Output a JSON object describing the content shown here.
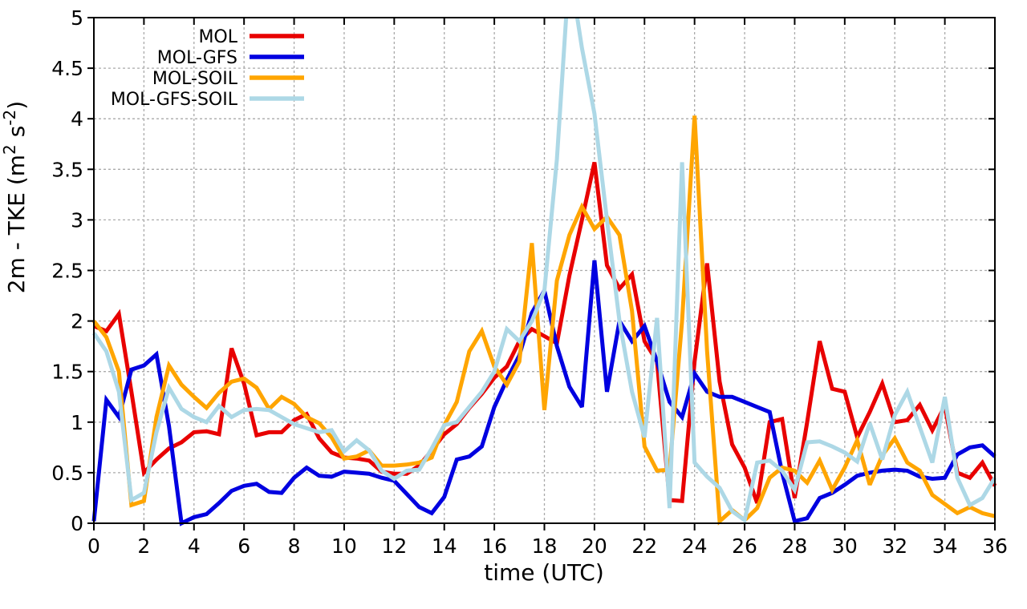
{
  "chart_data": {
    "type": "line",
    "title": "",
    "xlabel": "time (UTC)",
    "ylabel": "2m - TKE (m2 s-2)",
    "ylabel_parts": [
      {
        "text": "2m - TKE (m"
      },
      {
        "text": "2",
        "sup": true
      },
      {
        "text": " s"
      },
      {
        "text": "-2",
        "sup": true
      },
      {
        "text": ")"
      }
    ],
    "xlim": [
      0,
      36
    ],
    "ylim": [
      0,
      5
    ],
    "xticks": [
      0,
      2,
      4,
      6,
      8,
      10,
      12,
      14,
      16,
      18,
      20,
      22,
      24,
      26,
      28,
      30,
      32,
      34,
      36
    ],
    "yticks": [
      0,
      0.5,
      1,
      1.5,
      2,
      2.5,
      3,
      3.5,
      4,
      4.5,
      5
    ],
    "grid": true,
    "grid_color": "#aaaaaa",
    "axis_color": "#000000",
    "background": "#ffffff",
    "legend_position": "top-left",
    "x_start": 0,
    "x_step": 0.5,
    "series": [
      {
        "name": "MOL",
        "color": "#e80000",
        "values": [
          1.95,
          1.9,
          2.07,
          1.3,
          0.5,
          0.63,
          0.74,
          0.8,
          0.9,
          0.91,
          0.88,
          1.73,
          1.38,
          0.87,
          0.9,
          0.9,
          1.02,
          1.08,
          0.84,
          0.7,
          0.65,
          0.64,
          0.62,
          0.51,
          0.49,
          0.49,
          0.57,
          0.72,
          0.88,
          0.98,
          1.14,
          1.28,
          1.44,
          1.55,
          1.8,
          1.92,
          1.85,
          1.78,
          2.45,
          3.0,
          3.57,
          2.55,
          2.32,
          2.46,
          1.8,
          1.6,
          0.23,
          0.22,
          1.6,
          2.57,
          1.4,
          0.78,
          0.55,
          0.2,
          1.0,
          1.03,
          0.25,
          1.0,
          1.8,
          1.33,
          1.3,
          0.85,
          1.1,
          1.38,
          1.0,
          1.02,
          1.17,
          0.92,
          1.16,
          0.5,
          0.45,
          0.6,
          0.37
        ]
      },
      {
        "name": "MOL-GFS",
        "color": "#0000e0",
        "values": [
          0.02,
          1.22,
          1.05,
          1.52,
          1.56,
          1.67,
          0.96,
          0.0,
          0.06,
          0.09,
          0.2,
          0.32,
          0.37,
          0.39,
          0.31,
          0.3,
          0.45,
          0.55,
          0.47,
          0.46,
          0.51,
          0.5,
          0.49,
          0.45,
          0.42,
          0.29,
          0.16,
          0.1,
          0.26,
          0.63,
          0.66,
          0.76,
          1.15,
          1.42,
          1.66,
          2.08,
          2.3,
          1.75,
          1.35,
          1.15,
          2.6,
          1.3,
          2.0,
          1.8,
          1.95,
          1.6,
          1.2,
          1.05,
          1.48,
          1.3,
          1.25,
          1.25,
          1.2,
          1.15,
          1.1,
          0.5,
          0.02,
          0.05,
          0.25,
          0.3,
          0.38,
          0.47,
          0.5,
          0.52,
          0.53,
          0.52,
          0.46,
          0.44,
          0.45,
          0.68,
          0.75,
          0.77,
          0.66
        ]
      },
      {
        "name": "MOL-SOIL",
        "color": "#ffa500",
        "values": [
          2.0,
          1.84,
          1.5,
          0.18,
          0.22,
          1.05,
          1.56,
          1.37,
          1.25,
          1.14,
          1.29,
          1.4,
          1.43,
          1.34,
          1.13,
          1.25,
          1.18,
          1.05,
          0.99,
          0.85,
          0.64,
          0.66,
          0.72,
          0.57,
          0.57,
          0.58,
          0.6,
          0.65,
          0.97,
          1.2,
          1.7,
          1.9,
          1.55,
          1.37,
          1.6,
          2.77,
          1.12,
          2.4,
          2.85,
          3.13,
          2.91,
          3.03,
          2.85,
          2.1,
          0.76,
          0.52,
          0.53,
          2.0,
          4.03,
          1.7,
          0.02,
          0.13,
          0.03,
          0.15,
          0.45,
          0.55,
          0.52,
          0.4,
          0.62,
          0.33,
          0.55,
          0.82,
          0.38,
          0.67,
          0.84,
          0.6,
          0.52,
          0.28,
          0.19,
          0.1,
          0.16,
          0.1,
          0.07
        ]
      },
      {
        "name": "MOL-GFS-SOIL",
        "color": "#add8e6",
        "values": [
          1.88,
          1.7,
          1.3,
          0.23,
          0.3,
          0.9,
          1.34,
          1.13,
          1.05,
          1.0,
          1.16,
          1.05,
          1.12,
          1.13,
          1.12,
          1.05,
          0.98,
          0.94,
          0.9,
          0.92,
          0.71,
          0.82,
          0.72,
          0.52,
          0.44,
          0.52,
          0.53,
          0.74,
          0.97,
          1.0,
          1.15,
          1.3,
          1.5,
          1.92,
          1.8,
          2.0,
          2.3,
          3.6,
          5.5,
          4.7,
          4.05,
          3.0,
          2.0,
          1.3,
          0.85,
          2.03,
          0.15,
          3.57,
          0.6,
          0.46,
          0.35,
          0.12,
          0.03,
          0.6,
          0.62,
          0.52,
          0.33,
          0.8,
          0.81,
          0.76,
          0.7,
          0.61,
          0.99,
          0.63,
          1.07,
          1.3,
          0.95,
          0.6,
          1.25,
          0.45,
          0.18,
          0.25,
          0.45
        ]
      }
    ]
  }
}
